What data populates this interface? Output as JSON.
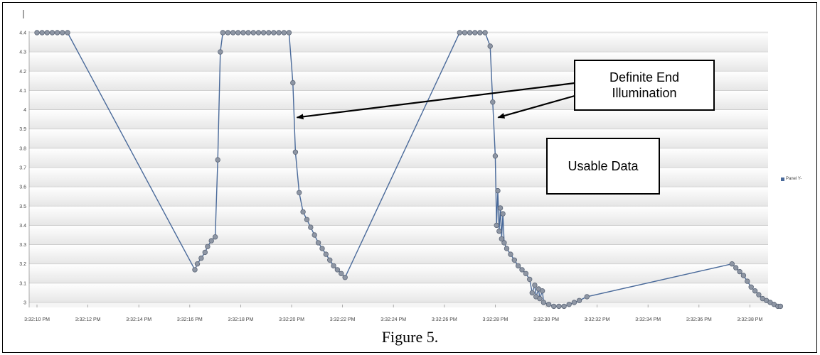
{
  "caption": "Figure 5.",
  "annotations": {
    "definite_end": "Definite End\nIllumination",
    "usable_data": "Usable Data"
  },
  "legend": {
    "label": "Panel Y-"
  },
  "colors": {
    "line": "#4a6a9a",
    "marker_fill": "#8e96a4",
    "marker_stroke": "#5d6778",
    "grid": "#c9c9c9"
  },
  "chart_data": {
    "type": "line",
    "title": "",
    "xlabel": "",
    "ylabel": "",
    "ylim": [
      2.97,
      4.41
    ],
    "xlim_seconds_labels": [
      "3:32:10 PM",
      "3:32:39 PM"
    ],
    "grid": true,
    "legend_position": "right",
    "y_ticks": [
      "4.4",
      "4.3",
      "4.2",
      "4.1",
      "4",
      "3.9",
      "3.8",
      "3.7",
      "3.6",
      "3.5",
      "3.4",
      "3.3",
      "3.2",
      "3.1",
      "3"
    ],
    "x_ticks": [
      "3:32:10 PM",
      "3:32:12 PM",
      "3:32:14 PM",
      "3:32:16 PM",
      "3:32:18 PM",
      "3:32:20 PM",
      "3:32:22 PM",
      "3:32:24 PM",
      "3:32:26 PM",
      "3:32:28 PM",
      "3:32:30 PM",
      "3:32:32 PM",
      "3:32:34 PM",
      "3:32:36 PM",
      "3:32:38 PM"
    ],
    "series": [
      {
        "name": "Panel Y-",
        "points": [
          [
            "3:32:10.0 PM",
            4.4
          ],
          [
            "3:32:10.2 PM",
            4.4
          ],
          [
            "3:32:10.4 PM",
            4.4
          ],
          [
            "3:32:10.6 PM",
            4.4
          ],
          [
            "3:32:10.8 PM",
            4.4
          ],
          [
            "3:32:11.0 PM",
            4.4
          ],
          [
            "3:32:11.2 PM",
            4.4
          ],
          [
            "3:32:16.2 PM",
            3.17
          ],
          [
            "3:32:16.3 PM",
            3.2
          ],
          [
            "3:32:16.45 PM",
            3.23
          ],
          [
            "3:32:16.6 PM",
            3.26
          ],
          [
            "3:32:16.7 PM",
            3.29
          ],
          [
            "3:32:16.85 PM",
            3.32
          ],
          [
            "3:32:17.0 PM",
            3.34
          ],
          [
            "3:32:17.1 PM",
            3.74
          ],
          [
            "3:32:17.2 PM",
            4.3
          ],
          [
            "3:32:17.3 PM",
            4.4
          ],
          [
            "3:32:17.5 PM",
            4.4
          ],
          [
            "3:32:17.7 PM",
            4.4
          ],
          [
            "3:32:17.9 PM",
            4.4
          ],
          [
            "3:32:18.1 PM",
            4.4
          ],
          [
            "3:32:18.3 PM",
            4.4
          ],
          [
            "3:32:18.5 PM",
            4.4
          ],
          [
            "3:32:18.7 PM",
            4.4
          ],
          [
            "3:32:18.9 PM",
            4.4
          ],
          [
            "3:32:19.1 PM",
            4.4
          ],
          [
            "3:32:19.3 PM",
            4.4
          ],
          [
            "3:32:19.5 PM",
            4.4
          ],
          [
            "3:32:19.7 PM",
            4.4
          ],
          [
            "3:32:19.9 PM",
            4.4
          ],
          [
            "3:32:20.05 PM",
            4.14
          ],
          [
            "3:32:20.15 PM",
            3.78
          ],
          [
            "3:32:20.3 PM",
            3.57
          ],
          [
            "3:32:20.45 PM",
            3.47
          ],
          [
            "3:32:20.6 PM",
            3.43
          ],
          [
            "3:32:20.75 PM",
            3.39
          ],
          [
            "3:32:20.9 PM",
            3.35
          ],
          [
            "3:32:21.05 PM",
            3.31
          ],
          [
            "3:32:21.2 PM",
            3.28
          ],
          [
            "3:32:21.35 PM",
            3.25
          ],
          [
            "3:32:21.5 PM",
            3.22
          ],
          [
            "3:32:21.65 PM",
            3.19
          ],
          [
            "3:32:21.8 PM",
            3.17
          ],
          [
            "3:32:21.95 PM",
            3.15
          ],
          [
            "3:32:22.1 PM",
            3.13
          ],
          [
            "3:32:26.6 PM",
            4.4
          ],
          [
            "3:32:26.8 PM",
            4.4
          ],
          [
            "3:32:27.0 PM",
            4.4
          ],
          [
            "3:32:27.2 PM",
            4.4
          ],
          [
            "3:32:27.4 PM",
            4.4
          ],
          [
            "3:32:27.6 PM",
            4.4
          ],
          [
            "3:32:27.8 PM",
            4.33
          ],
          [
            "3:32:27.9 PM",
            4.04
          ],
          [
            "3:32:28.0 PM",
            3.76
          ],
          [
            "3:32:28.05 PM",
            3.4
          ],
          [
            "3:32:28.1 PM",
            3.58
          ],
          [
            "3:32:28.15 PM",
            3.37
          ],
          [
            "3:32:28.2 PM",
            3.49
          ],
          [
            "3:32:28.25 PM",
            3.33
          ],
          [
            "3:32:28.3 PM",
            3.46
          ],
          [
            "3:32:28.35 PM",
            3.31
          ],
          [
            "3:32:28.45 PM",
            3.28
          ],
          [
            "3:32:28.6 PM",
            3.25
          ],
          [
            "3:32:28.75 PM",
            3.22
          ],
          [
            "3:32:28.9 PM",
            3.19
          ],
          [
            "3:32:29.05 PM",
            3.17
          ],
          [
            "3:32:29.2 PM",
            3.15
          ],
          [
            "3:32:29.35 PM",
            3.12
          ],
          [
            "3:32:29.45 PM",
            3.05
          ],
          [
            "3:32:29.55 PM",
            3.09
          ],
          [
            "3:32:29.6 PM",
            3.03
          ],
          [
            "3:32:29.7 PM",
            3.07
          ],
          [
            "3:32:29.75 PM",
            3.02
          ],
          [
            "3:32:29.85 PM",
            3.06
          ],
          [
            "3:32:29.9 PM",
            3.0
          ],
          [
            "3:32:30.1 PM",
            2.99
          ],
          [
            "3:32:30.3 PM",
            2.98
          ],
          [
            "3:32:30.5 PM",
            2.98
          ],
          [
            "3:32:30.7 PM",
            2.98
          ],
          [
            "3:32:30.9 PM",
            2.99
          ],
          [
            "3:32:31.1 PM",
            3.0
          ],
          [
            "3:32:31.3 PM",
            3.01
          ],
          [
            "3:32:31.6 PM",
            3.03
          ],
          [
            "3:32:37.3 PM",
            3.2
          ],
          [
            "3:32:37.45 PM",
            3.18
          ],
          [
            "3:32:37.6 PM",
            3.16
          ],
          [
            "3:32:37.75 PM",
            3.14
          ],
          [
            "3:32:37.9 PM",
            3.11
          ],
          [
            "3:32:38.05 PM",
            3.08
          ],
          [
            "3:32:38.2 PM",
            3.06
          ],
          [
            "3:32:38.35 PM",
            3.04
          ],
          [
            "3:32:38.5 PM",
            3.02
          ],
          [
            "3:32:38.65 PM",
            3.01
          ],
          [
            "3:32:38.8 PM",
            3.0
          ],
          [
            "3:32:38.95 PM",
            2.99
          ],
          [
            "3:32:39.1 PM",
            2.98
          ],
          [
            "3:32:39.2 PM",
            2.98
          ]
        ]
      }
    ],
    "arrows": [
      {
        "target": [
          "3:32:20.1 PM",
          3.96
        ]
      },
      {
        "target": [
          "3:32:28.0 PM",
          3.96
        ]
      }
    ]
  }
}
